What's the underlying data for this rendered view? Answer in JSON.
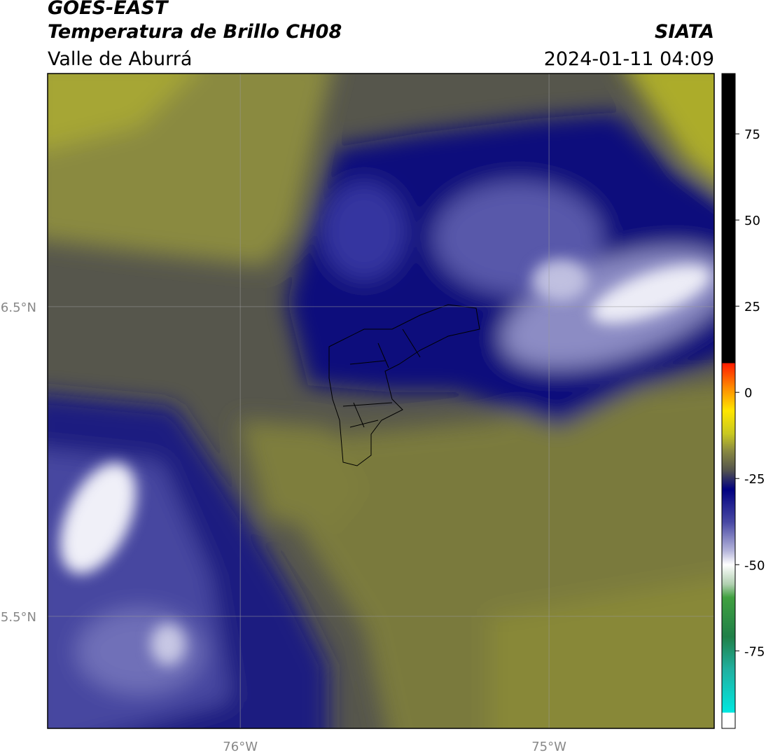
{
  "header": {
    "title": "GOES-EAST",
    "subtitle": "Temperatura de Brillo CH08",
    "region": "Valle de Aburrá",
    "source": "SIATA",
    "timestamp": "2024-01-11 04:09"
  },
  "map": {
    "xlim": [
      -76.624,
      -74.465
    ],
    "ylim": [
      5.138,
      7.253
    ],
    "xticks": [
      {
        "value": -76,
        "label": "76°W"
      },
      {
        "value": -75,
        "label": "75°W"
      }
    ],
    "yticks": [
      {
        "value": 6.5,
        "label": "6.5°N"
      },
      {
        "value": 5.5,
        "label": "5.5°N"
      }
    ],
    "grid": true
  },
  "colorbar": {
    "lim": [
      -97.5,
      92.5
    ],
    "ticks": [
      75,
      50,
      25,
      0,
      -25,
      -50,
      -75
    ]
  }
}
